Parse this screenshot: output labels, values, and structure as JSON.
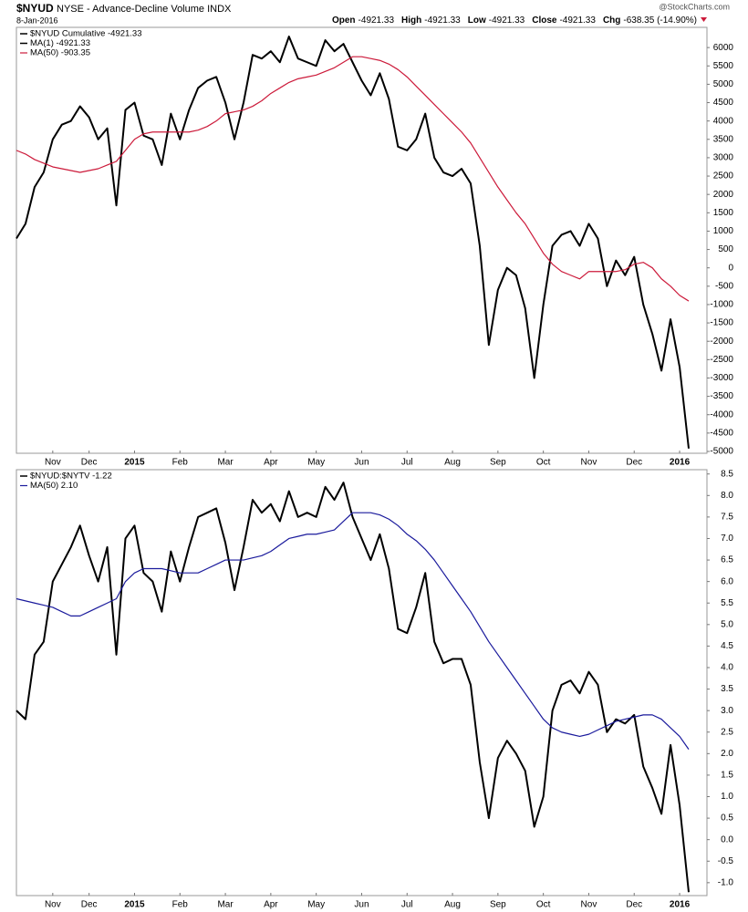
{
  "header": {
    "symbol": "$NYUD",
    "name": "NYSE - Advance-Decline Volume INDX",
    "date": "8-Jan-2016",
    "source": "@StockCharts.com",
    "quote": [
      {
        "label": "Open",
        "value": -4921.33
      },
      {
        "label": "High",
        "value": -4921.33
      },
      {
        "label": "Low",
        "value": -4921.33
      },
      {
        "label": "Close",
        "value": -4921.33
      },
      {
        "label": "Chg",
        "value": "-638.35 (-14.90%)"
      }
    ]
  },
  "chart_data": [
    {
      "type": "line",
      "legend_header": "$NYUD Cumulative -4921.33",
      "categories": [
        null,
        null,
        null,
        null,
        "Nov",
        null,
        null,
        null,
        "Dec",
        null,
        null,
        null,
        null,
        "2015",
        null,
        null,
        null,
        null,
        "Feb",
        null,
        null,
        null,
        null,
        "Mar",
        null,
        null,
        null,
        null,
        "Apr",
        null,
        null,
        null,
        null,
        "May",
        null,
        null,
        null,
        null,
        "Jun",
        null,
        null,
        null,
        null,
        "Jul",
        null,
        null,
        null,
        null,
        "Aug",
        null,
        null,
        null,
        null,
        "Sep",
        null,
        null,
        null,
        null,
        "Oct",
        null,
        null,
        null,
        null,
        "Nov",
        null,
        null,
        null,
        null,
        "Dec",
        null,
        null,
        null,
        null,
        "2016",
        null
      ],
      "series": [
        {
          "name": "MA(1) -4921.33",
          "color": "#000000",
          "values": [
            800,
            1200,
            2200,
            2600,
            3500,
            3900,
            4000,
            4400,
            4100,
            3500,
            3800,
            1700,
            4300,
            4500,
            3600,
            3500,
            2800,
            4200,
            3500,
            4300,
            4900,
            5100,
            5200,
            4500,
            3500,
            4500,
            5800,
            5700,
            5900,
            5600,
            6300,
            5700,
            5600,
            5500,
            6200,
            5900,
            6100,
            5600,
            5100,
            4700,
            5300,
            4600,
            3300,
            3200,
            3500,
            4200,
            3000,
            2600,
            2500,
            2700,
            2300,
            600,
            -2100,
            -600,
            0,
            -200,
            -1100,
            -3000,
            -1000,
            600,
            900,
            1000,
            600,
            1200,
            800,
            -500,
            200,
            -200,
            300,
            -1000,
            -1800,
            -2800,
            -1400,
            -2700,
            -4921.33
          ]
        },
        {
          "name": "MA(50) -903.35",
          "color": "#cc1a3a",
          "values": [
            3200,
            3100,
            2950,
            2850,
            2750,
            2700,
            2650,
            2600,
            2650,
            2700,
            2800,
            2900,
            3200,
            3500,
            3650,
            3700,
            3700,
            3700,
            3700,
            3700,
            3750,
            3850,
            4000,
            4200,
            4250,
            4300,
            4400,
            4550,
            4750,
            4900,
            5050,
            5150,
            5200,
            5250,
            5350,
            5450,
            5600,
            5750,
            5750,
            5700,
            5650,
            5550,
            5400,
            5200,
            4950,
            4700,
            4450,
            4200,
            3950,
            3700,
            3400,
            3000,
            2600,
            2200,
            1850,
            1500,
            1200,
            800,
            400,
            100,
            -100,
            -200,
            -300,
            -100,
            -100,
            -100,
            -100,
            -50,
            100,
            150,
            0,
            -300,
            -500,
            -750,
            -903.35
          ]
        }
      ],
      "ylim": [
        -5050,
        6550
      ],
      "yticks": [
        -5000,
        -4500,
        -4000,
        -3500,
        -3000,
        -2500,
        -2000,
        -1500,
        -1000,
        -500,
        0,
        500,
        1000,
        1500,
        2000,
        2500,
        3000,
        3500,
        4000,
        4500,
        5000,
        5500,
        6000
      ],
      "grid": false
    },
    {
      "type": "line",
      "categories": [
        null,
        null,
        null,
        null,
        "Nov",
        null,
        null,
        null,
        "Dec",
        null,
        null,
        null,
        null,
        "2015",
        null,
        null,
        null,
        null,
        "Feb",
        null,
        null,
        null,
        null,
        "Mar",
        null,
        null,
        null,
        null,
        "Apr",
        null,
        null,
        null,
        null,
        "May",
        null,
        null,
        null,
        null,
        "Jun",
        null,
        null,
        null,
        null,
        "Jul",
        null,
        null,
        null,
        null,
        "Aug",
        null,
        null,
        null,
        null,
        "Sep",
        null,
        null,
        null,
        null,
        "Oct",
        null,
        null,
        null,
        null,
        "Nov",
        null,
        null,
        null,
        null,
        "Dec",
        null,
        null,
        null,
        null,
        "2016",
        null
      ],
      "series": [
        {
          "name": "$NYUD:$NYTV -1.22",
          "color": "#000000",
          "values": [
            3.0,
            2.8,
            4.3,
            4.6,
            6.0,
            6.4,
            6.8,
            7.3,
            6.6,
            6.0,
            6.8,
            4.3,
            7.0,
            7.3,
            6.2,
            6.0,
            5.3,
            6.7,
            6.0,
            6.8,
            7.5,
            7.6,
            7.7,
            6.9,
            5.8,
            6.8,
            7.9,
            7.6,
            7.8,
            7.4,
            8.1,
            7.5,
            7.6,
            7.5,
            8.2,
            7.9,
            8.3,
            7.5,
            7.0,
            6.5,
            7.1,
            6.3,
            4.9,
            4.8,
            5.4,
            6.2,
            4.6,
            4.1,
            4.2,
            4.2,
            3.6,
            1.8,
            0.5,
            1.9,
            2.3,
            2.0,
            1.6,
            0.3,
            1.0,
            3.0,
            3.6,
            3.7,
            3.4,
            3.9,
            3.6,
            2.5,
            2.8,
            2.7,
            2.9,
            1.7,
            1.2,
            0.6,
            2.2,
            0.8,
            -1.22
          ]
        },
        {
          "name": "MA(50) 2.10",
          "color": "#1a1a9c",
          "values": [
            5.6,
            5.55,
            5.5,
            5.45,
            5.4,
            5.3,
            5.2,
            5.2,
            5.3,
            5.4,
            5.5,
            5.6,
            6.0,
            6.2,
            6.3,
            6.3,
            6.3,
            6.25,
            6.2,
            6.2,
            6.2,
            6.3,
            6.4,
            6.5,
            6.5,
            6.5,
            6.55,
            6.6,
            6.7,
            6.85,
            7.0,
            7.05,
            7.1,
            7.1,
            7.15,
            7.2,
            7.4,
            7.6,
            7.6,
            7.6,
            7.55,
            7.45,
            7.3,
            7.1,
            6.95,
            6.75,
            6.5,
            6.2,
            5.9,
            5.6,
            5.3,
            4.95,
            4.6,
            4.3,
            4.0,
            3.7,
            3.4,
            3.1,
            2.8,
            2.6,
            2.5,
            2.45,
            2.4,
            2.45,
            2.55,
            2.65,
            2.75,
            2.8,
            2.85,
            2.9,
            2.9,
            2.8,
            2.6,
            2.4,
            2.1
          ]
        }
      ],
      "ylim": [
        -1.3,
        8.6
      ],
      "yticks": [
        {
          "value": -1,
          "label": "-1.0"
        },
        -0.5,
        {
          "value": 0,
          "label": "0.0"
        },
        0.5,
        {
          "value": 1,
          "label": "1.0"
        },
        1.5,
        {
          "value": 2,
          "label": "2.0"
        },
        2.5,
        {
          "value": 3,
          "label": "3.0"
        },
        3.5,
        {
          "value": 4,
          "label": "4.0"
        },
        4.5,
        {
          "value": 5,
          "label": "5.0"
        },
        5.5,
        {
          "value": 6,
          "label": "6.0"
        },
        6.5,
        {
          "value": 7,
          "label": "7.0"
        },
        7.5,
        {
          "value": 8,
          "label": "8.0"
        },
        8.5
      ],
      "grid": false
    }
  ]
}
